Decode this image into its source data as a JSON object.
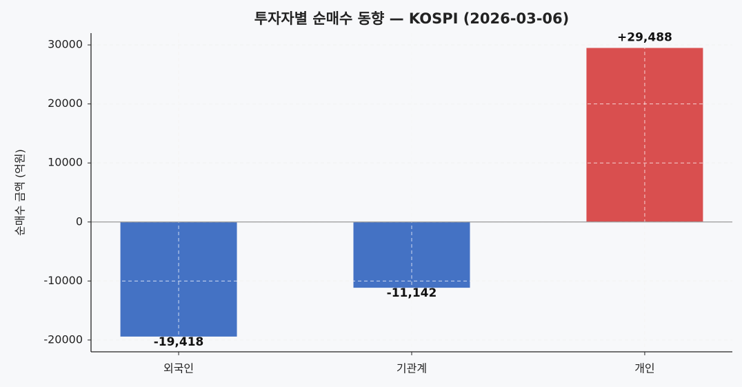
{
  "chart_data": {
    "type": "bar",
    "title": "투자자별 순매수 동향 — KOSPI (2026-03-06)",
    "y_label": "순매수 금액 (억원)",
    "categories": [
      "외국인",
      "기관계",
      "개인"
    ],
    "values": [
      -19418,
      -11142,
      29488
    ],
    "value_labels": [
      "-19,418",
      "-11,142",
      "+29,488"
    ],
    "colors": [
      "#4472c4",
      "#4472c4",
      "#d94f4f"
    ],
    "ylim": [
      -22000,
      32000
    ],
    "yticks": [
      -20000,
      -10000,
      0,
      10000,
      20000,
      30000
    ],
    "grid": true
  }
}
